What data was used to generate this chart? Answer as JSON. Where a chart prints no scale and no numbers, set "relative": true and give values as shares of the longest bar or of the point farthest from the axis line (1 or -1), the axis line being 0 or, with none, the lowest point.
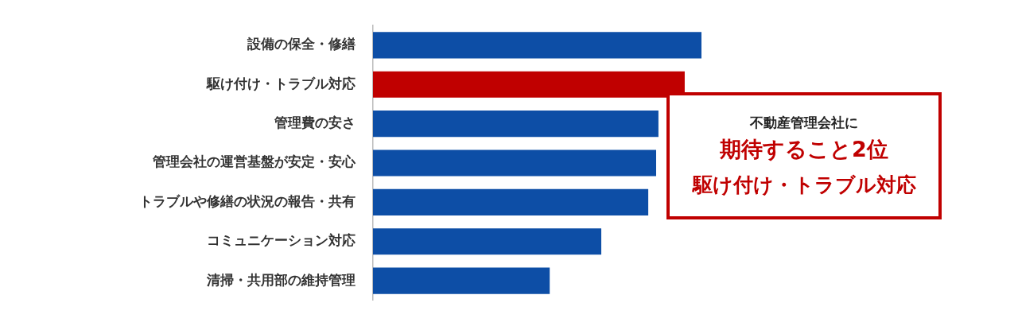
{
  "chart_data": {
    "type": "bar",
    "orientation": "horizontal",
    "relative": true,
    "categories": [
      "設備の保全・修繕",
      "駆け付け・トラブル対応",
      "管理費の安さ",
      "管理会社の運営基盤が安定・安心",
      "トラブルや修繕の状況の報告・共有",
      "コミュニケーション対応",
      "清掃・共用部の維持管理"
    ],
    "values": [
      1,
      0.949,
      0.869,
      0.862,
      0.838,
      0.695,
      0.538
    ],
    "colors": [
      "#0d4ea6",
      "#c00000",
      "#0d4ea6",
      "#0d4ea6",
      "#0d4ea6",
      "#0d4ea6",
      "#0d4ea6"
    ],
    "legend": false,
    "annotations": [
      "不動産管理会社に",
      "期待すること2位",
      "駆け付け・トラブル対応"
    ]
  }
}
